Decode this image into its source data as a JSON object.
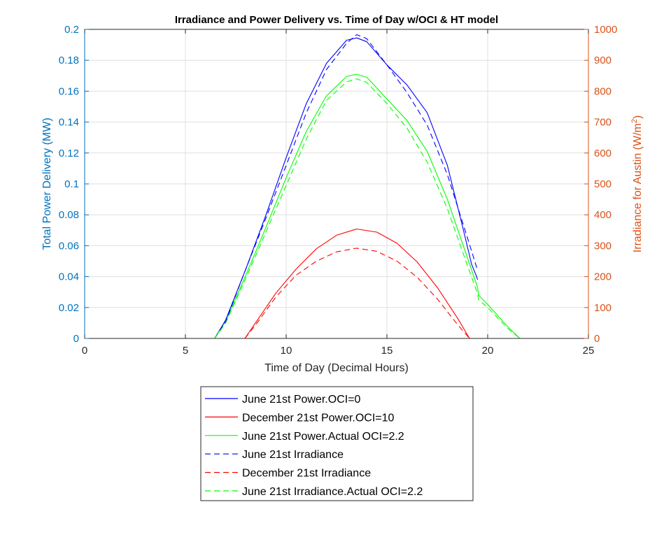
{
  "chart_data": {
    "type": "line",
    "title": "Irradiance and Power Delivery vs. Time of Day w/OCI & HT model",
    "xlabel": "Time of Day (Decimal Hours)",
    "ylabel_left": "Total Power Delivery (MW)",
    "ylabel_right_main": "Irradiance for Austin (W/m",
    "ylabel_right_sup": "2",
    "ylabel_right_end": ")",
    "xlim": [
      0,
      25
    ],
    "ylim_left": [
      0,
      0.2
    ],
    "ylim_right": [
      0,
      1000
    ],
    "x_ticks": [
      "0",
      "5",
      "10",
      "15",
      "20",
      "25"
    ],
    "y_ticks_left": [
      "0",
      "0.02",
      "0.04",
      "0.06",
      "0.08",
      "0.1",
      "0.12",
      "0.14",
      "0.16",
      "0.18",
      "0.2"
    ],
    "y_ticks_right": [
      "0",
      "100",
      "200",
      "300",
      "400",
      "500",
      "600",
      "700",
      "800",
      "900",
      "1000"
    ],
    "grid": true,
    "legend_position": "below",
    "series": [
      {
        "name": "June 21st Power.OCI=0",
        "color": "#0000ff",
        "style": "solid",
        "axis": "left",
        "x": [
          0,
          6.45,
          7,
          8,
          9,
          10,
          11,
          12,
          13,
          13.5,
          14,
          15,
          16,
          17,
          18,
          18.8,
          19.2,
          19.45,
          19.5
        ],
        "y": [
          0,
          0,
          0.012,
          0.045,
          0.08,
          0.117,
          0.152,
          0.178,
          0.193,
          0.1945,
          0.192,
          0.177,
          0.164,
          0.146,
          0.112,
          0.07,
          0.048,
          0.04,
          0.038
        ]
      },
      {
        "name": "December 21st Power.OCI=10",
        "color": "#ff0000",
        "style": "solid",
        "axis": "left",
        "x": [
          0,
          7.95,
          8.5,
          9.5,
          10.5,
          11.5,
          12.5,
          13.5,
          14.5,
          15.5,
          16.5,
          17.5,
          18.5,
          19.1,
          25
        ],
        "y": [
          0,
          0,
          0.0105,
          0.0295,
          0.045,
          0.058,
          0.0668,
          0.0708,
          0.0688,
          0.0616,
          0.0495,
          0.033,
          0.0132,
          0,
          0
        ]
      },
      {
        "name": "June 21st Power.Actual OCI=2.2",
        "color": "#00ff00",
        "style": "solid",
        "axis": "left",
        "x": [
          0,
          6.45,
          7,
          8,
          9,
          10,
          11,
          12,
          13,
          13.5,
          14,
          15,
          16,
          17,
          18,
          19,
          19.5,
          19.55,
          20,
          21,
          21.6,
          25
        ],
        "y": [
          0,
          0,
          0.011,
          0.041,
          0.072,
          0.104,
          0.134,
          0.157,
          0.1695,
          0.171,
          0.169,
          0.155,
          0.141,
          0.121,
          0.09,
          0.052,
          0.033,
          0.028,
          0.022,
          0.0075,
          0,
          0
        ]
      },
      {
        "name": "June 21st Irradiance",
        "color": "#0000ff",
        "style": "dashed",
        "axis": "right",
        "x": [
          6.45,
          7,
          8,
          9,
          10,
          11,
          12,
          13,
          13.5,
          14,
          15,
          16,
          17,
          18,
          19,
          19.5
        ],
        "y": [
          0,
          55,
          225,
          390,
          560,
          730,
          870,
          955,
          983,
          970,
          885,
          795,
          690,
          530,
          325,
          220
        ]
      },
      {
        "name": "December 21st Irradiance",
        "color": "#ff0000",
        "style": "dashed",
        "axis": "right",
        "x": [
          7.95,
          8.5,
          9.5,
          10.5,
          11.5,
          12.5,
          13.5,
          14.5,
          15.5,
          16.5,
          17.5,
          18.5,
          19.1
        ],
        "y": [
          0,
          45,
          135,
          205,
          250,
          280,
          292,
          282,
          250,
          198,
          128,
          45,
          0
        ]
      },
      {
        "name": "June 21st Irradiance.Actual OCI=2.2",
        "color": "#00ff00",
        "style": "dashed",
        "axis": "right",
        "x": [
          6.45,
          7,
          8,
          9,
          10,
          11,
          12,
          13,
          13.5,
          14,
          15,
          16,
          17,
          18,
          19,
          19.5,
          19.55,
          20,
          21,
          21.6,
          25
        ],
        "y": [
          0,
          50,
          195,
          345,
          495,
          645,
          770,
          830,
          840,
          828,
          760,
          680,
          570,
          420,
          235,
          145,
          125,
          100,
          32,
          0,
          0
        ]
      }
    ]
  }
}
